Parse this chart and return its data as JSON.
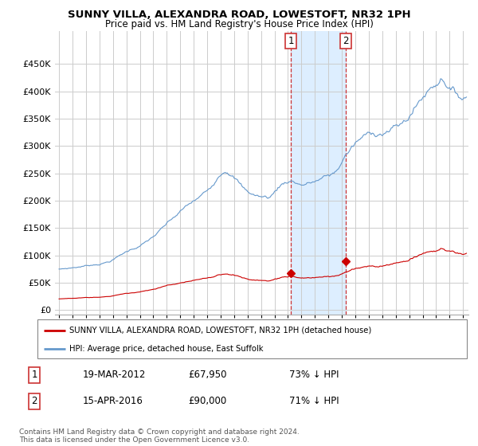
{
  "title": "SUNNY VILLA, ALEXANDRA ROAD, LOWESTOFT, NR32 1PH",
  "subtitle": "Price paid vs. HM Land Registry's House Price Index (HPI)",
  "hpi_color": "#6699cc",
  "property_color": "#cc0000",
  "vline_color": "#cc3333",
  "highlight_color": "#ddeeff",
  "sale1_year": 2012.22,
  "sale1_price": 67950,
  "sale2_year": 2016.29,
  "sale2_price": 90000,
  "ylabel_values": [
    0,
    50000,
    100000,
    150000,
    200000,
    250000,
    300000,
    350000,
    400000,
    450000
  ],
  "ylabel_labels": [
    "£0",
    "£50K",
    "£100K",
    "£150K",
    "£200K",
    "£250K",
    "£300K",
    "£350K",
    "£400K",
    "£450K"
  ],
  "xlim_start": 1994.7,
  "xlim_end": 2025.4,
  "ylim_min": -8000,
  "ylim_max": 510000,
  "footnote": "Contains HM Land Registry data © Crown copyright and database right 2024.\nThis data is licensed under the Open Government Licence v3.0.",
  "legend1": "SUNNY VILLA, ALEXANDRA ROAD, LOWESTOFT, NR32 1PH (detached house)",
  "legend2": "HPI: Average price, detached house, East Suffolk",
  "table_rows": [
    [
      "1",
      "19-MAR-2012",
      "£67,950",
      "73% ↓ HPI"
    ],
    [
      "2",
      "15-APR-2016",
      "£90,000",
      "71% ↓ HPI"
    ]
  ]
}
